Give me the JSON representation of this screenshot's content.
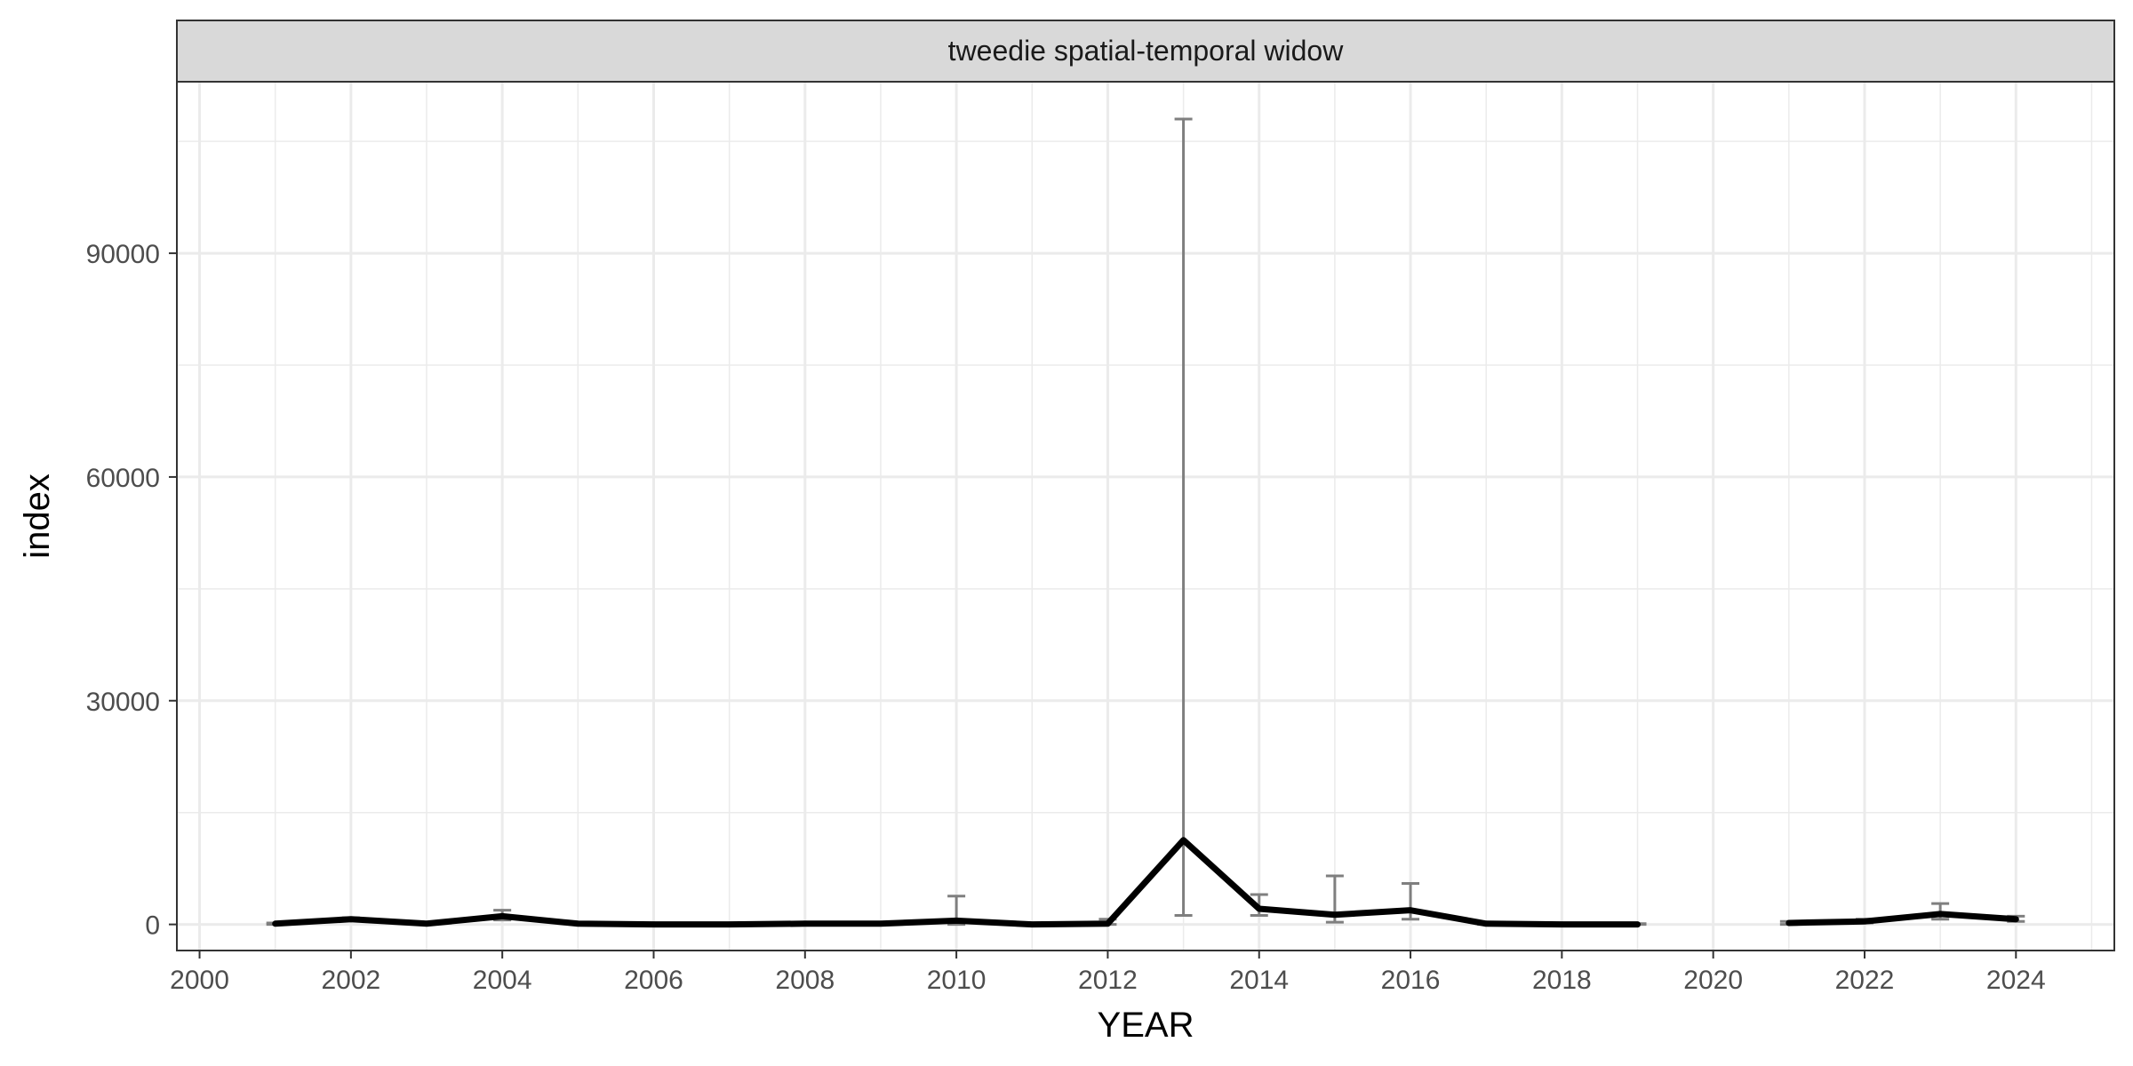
{
  "chart_data": {
    "type": "line",
    "panel_title": "tweedie spatial-temporal widow",
    "xlabel": "YEAR",
    "ylabel": "index",
    "xlim": [
      1999.7,
      2025.3
    ],
    "ylim": [
      -3500,
      113000
    ],
    "x_ticks": [
      2000,
      2002,
      2004,
      2006,
      2008,
      2010,
      2012,
      2014,
      2016,
      2018,
      2020,
      2022,
      2024
    ],
    "y_ticks": [
      0,
      30000,
      60000,
      90000
    ],
    "grid": true,
    "legend": "none",
    "colors": {
      "line": "#000000",
      "error_bar": "#7f7f7f",
      "grid": "#ebebeb",
      "strip_fill": "#d9d9d9",
      "border": "#333333"
    },
    "series": [
      {
        "values": [
          {
            "x": 2001,
            "y": 100,
            "lo": 0,
            "hi": 200
          },
          {
            "x": 2002,
            "y": 700,
            "lo": 500,
            "hi": 900
          },
          {
            "x": 2003,
            "y": 100,
            "lo": 0,
            "hi": 200
          },
          {
            "x": 2004,
            "y": 1100,
            "lo": 600,
            "hi": 1900
          },
          {
            "x": 2005,
            "y": 100,
            "lo": 0,
            "hi": 200
          },
          {
            "x": 2006,
            "y": 0,
            "lo": 0,
            "hi": 100
          },
          {
            "x": 2007,
            "y": 0,
            "lo": 0,
            "hi": 100
          },
          {
            "x": 2008,
            "y": 100,
            "lo": 0,
            "hi": 200
          },
          {
            "x": 2009,
            "y": 100,
            "lo": 0,
            "hi": 200
          },
          {
            "x": 2010,
            "y": 500,
            "lo": 0,
            "hi": 3800
          },
          {
            "x": 2011,
            "y": 0,
            "lo": 0,
            "hi": 100
          },
          {
            "x": 2012,
            "y": 100,
            "lo": 0,
            "hi": 700
          },
          {
            "x": 2013,
            "y": 11300,
            "lo": 1200,
            "hi": 108000
          },
          {
            "x": 2014,
            "y": 2100,
            "lo": 1200,
            "hi": 4000
          },
          {
            "x": 2015,
            "y": 1300,
            "lo": 300,
            "hi": 6500
          },
          {
            "x": 2016,
            "y": 1900,
            "lo": 700,
            "hi": 5500
          },
          {
            "x": 2017,
            "y": 100,
            "lo": 0,
            "hi": 200
          },
          {
            "x": 2018,
            "y": 0,
            "lo": 0,
            "hi": 100
          },
          {
            "x": 2019,
            "y": 0,
            "lo": 0,
            "hi": 100
          },
          {
            "x": 2020,
            "y": null,
            "lo": null,
            "hi": null
          },
          {
            "x": 2021,
            "y": 200,
            "lo": 0,
            "hi": 400
          },
          {
            "x": 2022,
            "y": 400,
            "lo": 200,
            "hi": 700
          },
          {
            "x": 2023,
            "y": 1400,
            "lo": 700,
            "hi": 2800
          },
          {
            "x": 2024,
            "y": 700,
            "lo": 400,
            "hi": 1100
          }
        ]
      }
    ]
  }
}
